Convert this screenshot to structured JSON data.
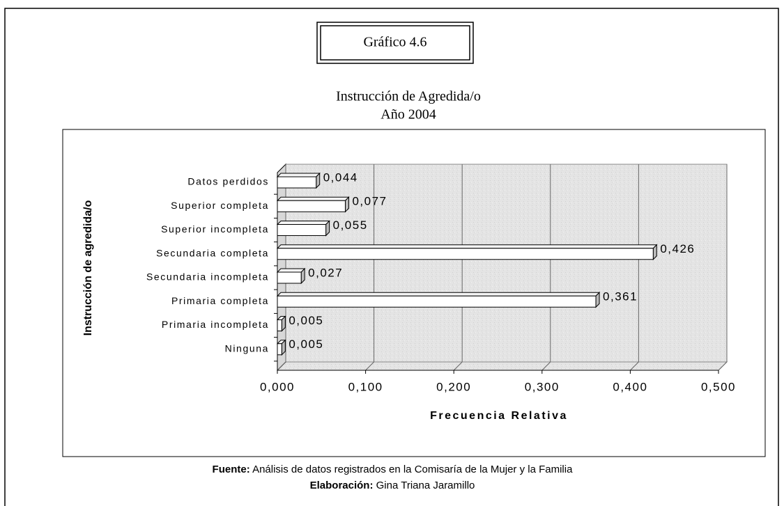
{
  "chart_data": {
    "type": "bar",
    "orientation": "horizontal",
    "figure_label": "Gráfico 4.6",
    "title": "Instrucción de Agredida/o",
    "subtitle": "Año 2004",
    "y_label": "Instrucción de agredida/o",
    "x_label": "Frecuencia Relativa",
    "categories": [
      "Datos perdidos",
      "Superior completa",
      "Superior incompleta",
      "Secundaria completa",
      "Secundaria incompleta",
      "Primaria completa",
      "Primaria incompleta",
      "Ninguna"
    ],
    "values": [
      0.044,
      0.077,
      0.055,
      0.426,
      0.027,
      0.361,
      0.005,
      0.005
    ],
    "value_labels": [
      "0,044",
      "0,077",
      "0,055",
      "0,426",
      "0,027",
      "0,361",
      "0,005",
      "0,005"
    ],
    "color": "#ffffff",
    "xlim": [
      0,
      0.5
    ],
    "xticks": [
      {
        "value": 0,
        "label": "0,000"
      },
      {
        "value": 0.1,
        "label": "0,100"
      },
      {
        "value": 0.2,
        "label": "0,200"
      },
      {
        "value": 0.3,
        "label": "0,300"
      },
      {
        "value": 0.4,
        "label": "0,400"
      },
      {
        "value": 0.5,
        "label": "0,500"
      }
    ],
    "grid": true,
    "source": {
      "label": "Fuente:",
      "text": "Análisis de datos registrados en la Comisaría de la Mujer y la Familia"
    },
    "credit": {
      "label": "Elaboración:",
      "text": "Gina Triana Jaramillo"
    }
  }
}
